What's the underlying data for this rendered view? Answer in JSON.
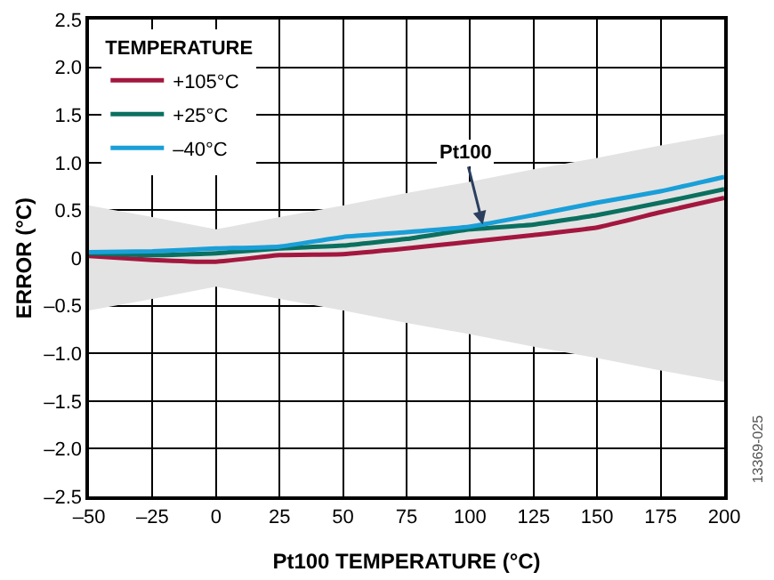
{
  "chart_data": {
    "type": "line",
    "xlabel": "Pt100 TEMPERATURE (°C)",
    "ylabel": "ERROR (°C)",
    "legend_title": "TEMPERATURE",
    "x": [
      -50,
      -25,
      0,
      25,
      50,
      75,
      100,
      125,
      150,
      175,
      200
    ],
    "series": [
      {
        "type": "area",
        "color": "#e3e3e3",
        "values": [
          null,
          null,
          null,
          null,
          null,
          null,
          null,
          null,
          null,
          null,
          null
        ],
        "lower": [
          -0.55,
          -0.43,
          -0.3,
          -0.43,
          -0.55,
          -0.68,
          -0.8,
          -0.93,
          -1.05,
          -1.18,
          -1.3
        ],
        "upper": [
          0.55,
          0.43,
          0.3,
          0.43,
          0.55,
          0.68,
          0.8,
          0.93,
          1.05,
          1.18,
          1.3
        ]
      },
      {
        "name": "+105°C",
        "color": "#a3173f",
        "values": [
          0.02,
          -0.02,
          -0.04,
          0.03,
          0.04,
          0.1,
          0.17,
          0.24,
          0.32,
          0.48,
          0.63
        ]
      },
      {
        "name": "+25°C",
        "color": "#0b7060",
        "values": [
          0.05,
          0.03,
          0.05,
          0.1,
          0.13,
          0.2,
          0.3,
          0.35,
          0.45,
          0.58,
          0.72
        ]
      },
      {
        "name": "–40°C",
        "color": "#1a9fd8",
        "values": [
          0.06,
          0.07,
          0.1,
          0.12,
          0.22,
          0.27,
          0.33,
          0.45,
          0.58,
          0.7,
          0.85
        ]
      }
    ],
    "xlim": [
      -50,
      200
    ],
    "xticks": [
      {
        "value": -50,
        "label": "–50"
      },
      {
        "value": -25,
        "label": "–25"
      },
      0,
      25,
      50,
      75,
      100,
      125,
      150,
      175,
      200
    ],
    "ylim": [
      -2.5,
      2.5
    ],
    "yticks": [
      {
        "value": -2.5,
        "label": "–2.5"
      },
      {
        "value": -2.0,
        "label": "–2.0"
      },
      {
        "value": -1.5,
        "label": "–1.5"
      },
      {
        "value": -1.0,
        "label": "–1.0"
      },
      {
        "value": -0.5,
        "label": "–0.5"
      },
      0,
      {
        "value": 0.5,
        "label": "0.5"
      },
      {
        "value": 1.0,
        "label": "1.0"
      },
      {
        "value": 1.5,
        "label": "1.5"
      },
      {
        "value": 2.0,
        "label": "2.0"
      },
      {
        "value": 2.5,
        "label": "2.5"
      }
    ],
    "grid": true,
    "legend": "top left",
    "marker": "none",
    "line_style": "solid",
    "annotations": [
      {
        "text": "Pt100",
        "x": 105,
        "y": 0.35
      },
      "13369-025"
    ]
  }
}
